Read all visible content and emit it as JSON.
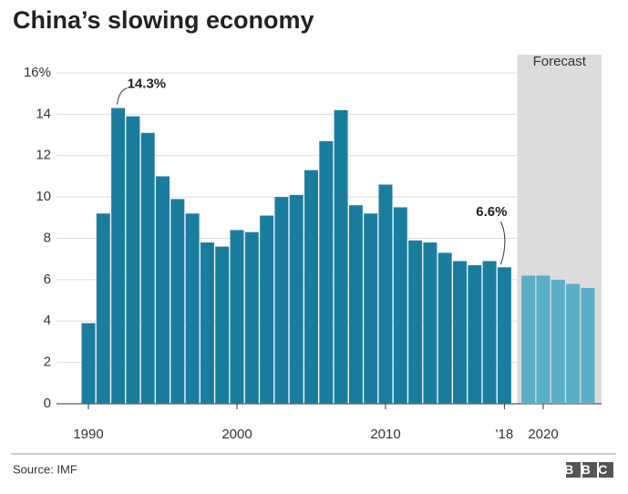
{
  "chart_data": {
    "type": "bar",
    "title": "China’s slowing economy",
    "categories": [
      "1990",
      null,
      null,
      null,
      null,
      null,
      null,
      null,
      null,
      null,
      "2000",
      null,
      null,
      null,
      null,
      null,
      null,
      null,
      null,
      null,
      "2010",
      null,
      null,
      null,
      null,
      null,
      null,
      null,
      "'18",
      null,
      "2020",
      null,
      null,
      null
    ],
    "series": [
      {
        "color": "#1b7d9e",
        "values": [
          3.9,
          9.2,
          14.3,
          13.9,
          13.1,
          11.0,
          9.9,
          9.2,
          7.8,
          7.6,
          8.4,
          8.3,
          9.1,
          10.0,
          10.1,
          11.3,
          12.7,
          14.2,
          9.6,
          9.2,
          10.6,
          9.5,
          7.9,
          7.8,
          7.3,
          6.9,
          6.7,
          6.9,
          6.6,
          null,
          null,
          null,
          null,
          null
        ],
        "value_labels": [
          null,
          null,
          "14.3%",
          null,
          null,
          null,
          null,
          null,
          null,
          null,
          null,
          null,
          null,
          null,
          null,
          null,
          null,
          null,
          null,
          null,
          null,
          null,
          null,
          null,
          null,
          null,
          null,
          null,
          "6.6%",
          null,
          null,
          null,
          null,
          null
        ]
      },
      {
        "color": "#5aaec6",
        "values": [
          null,
          null,
          null,
          null,
          null,
          null,
          null,
          null,
          null,
          null,
          null,
          null,
          null,
          null,
          null,
          null,
          null,
          null,
          null,
          null,
          null,
          null,
          null,
          null,
          null,
          null,
          null,
          null,
          null,
          6.2,
          6.2,
          6.0,
          5.8,
          5.6
        ]
      }
    ],
    "forecast_label": "Forecast",
    "ylim": [
      0,
      16
    ],
    "yticks": [
      0,
      2,
      4,
      6,
      8,
      10,
      12,
      14,
      {
        "value": 16,
        "label": "16%"
      }
    ],
    "grid": true,
    "source": "Source: IMF",
    "logo": "BBC"
  }
}
